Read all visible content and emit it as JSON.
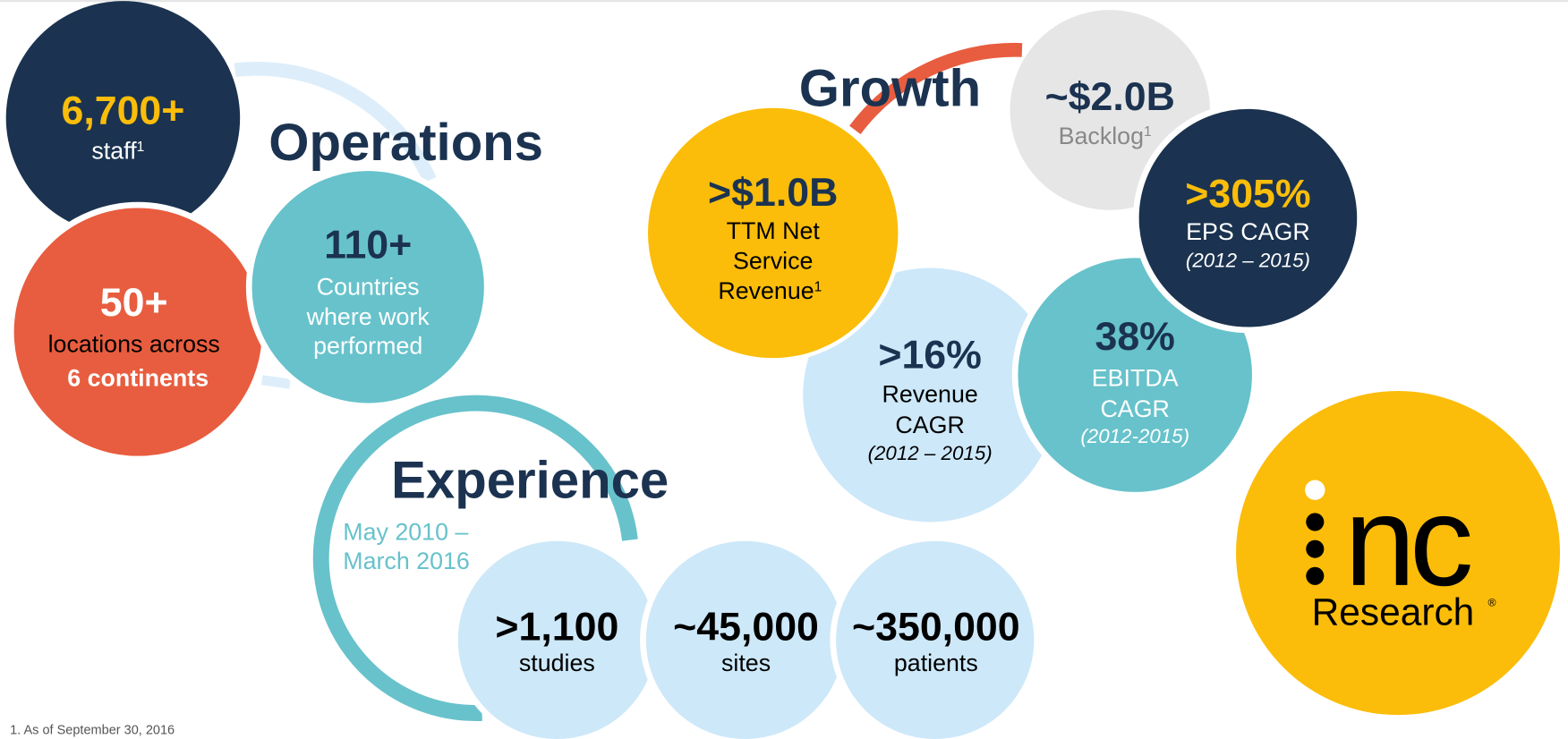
{
  "operations": {
    "title": "Operations",
    "stats": [
      {
        "value": "6,700+",
        "label": "staff",
        "note": "1"
      },
      {
        "value": "50+",
        "lines": [
          "locations across",
          "6 continents"
        ]
      },
      {
        "value": "110+",
        "lines": [
          "Countries",
          "where work",
          "performed"
        ]
      }
    ]
  },
  "growth": {
    "title": "Growth",
    "stats": [
      {
        "value": "~$2.0B",
        "label": "Backlog",
        "note": "1"
      },
      {
        "value": ">$1.0B",
        "lines": [
          "TTM Net",
          "Service",
          "Revenue"
        ],
        "note": "1"
      },
      {
        "value": ">305%",
        "label": "EPS CAGR",
        "period": "(2012 – 2015)"
      },
      {
        "value": ">16%",
        "lines": [
          "Revenue",
          "CAGR"
        ],
        "period": "(2012 – 2015)"
      },
      {
        "value": "38%",
        "lines": [
          "EBITDA",
          "CAGR"
        ],
        "period": "(2012-2015)"
      }
    ]
  },
  "experience": {
    "title": "Experience",
    "period_lines": [
      "May 2010 –",
      "March 2016"
    ],
    "stats": [
      {
        "value": ">1,100",
        "label": "studies"
      },
      {
        "value": "~45,000",
        "label": "sites"
      },
      {
        "value": "~350,000",
        "label": "patients"
      }
    ]
  },
  "logo": {
    "wordmark": "nc",
    "tagline": "Research",
    "mark": "®"
  },
  "footnote": "1. As of September 30, 2016"
}
